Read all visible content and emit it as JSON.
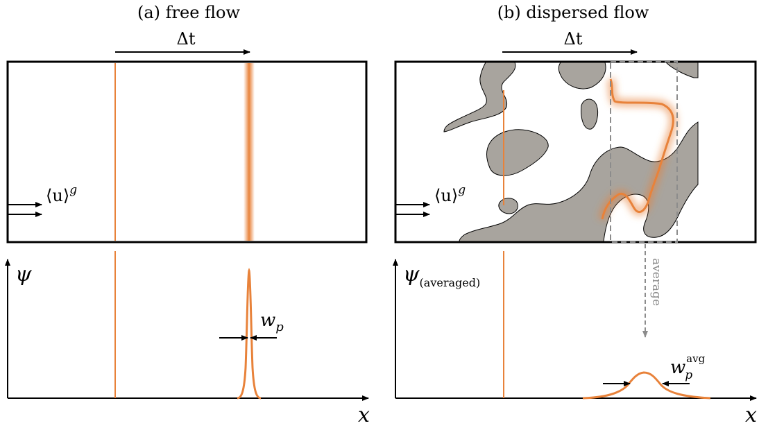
{
  "panel_a": {
    "title": "(a) free flow",
    "time_label": "Δt",
    "velocity_label": "⟨u⟩",
    "velocity_sup": "g",
    "psi_label": "ψ",
    "width_label": "w",
    "width_sub": "p",
    "x_label": "x"
  },
  "panel_b": {
    "title": "(b) dispersed flow",
    "time_label": "Δt",
    "velocity_label": "⟨u⟩",
    "velocity_sup": "g",
    "psi_label": "ψ",
    "psi_sub": "(averaged)",
    "average_label": "average",
    "width_label": "w",
    "width_sub": "p",
    "width_sup": "avg",
    "x_label": "x"
  },
  "colors": {
    "pulse": "#e8823a",
    "obstacle_fill": "#a8a49e",
    "dashed": "#8c8c8c",
    "axis": "#000000"
  }
}
